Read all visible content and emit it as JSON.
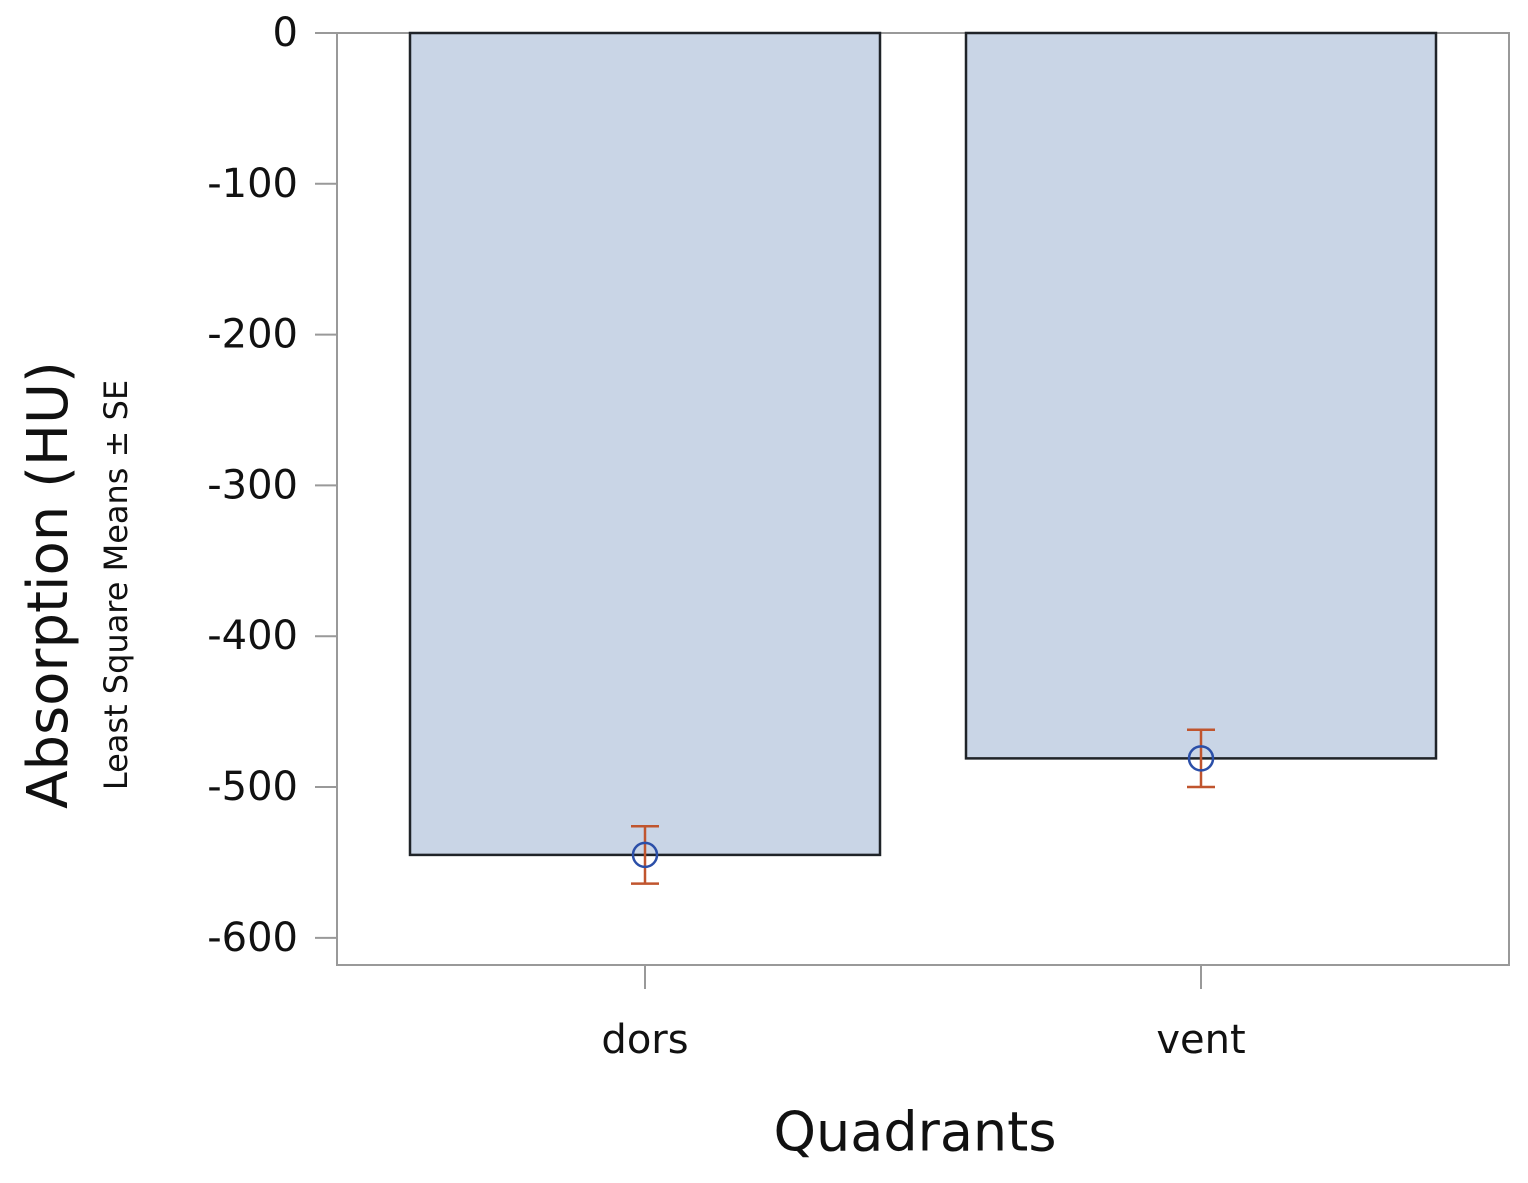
{
  "chart_data": {
    "type": "bar",
    "y_label": "Absorption (HU)",
    "y_sublabel": "Least Square Means ± SE",
    "x_label": "Quadrants",
    "categories": [
      "dors",
      "vent"
    ],
    "values": [
      -545,
      -481
    ],
    "errors": [
      19,
      19
    ],
    "color": "#c9d5e6",
    "edge_color": "#1f2328",
    "error_color": "#c0552e",
    "marker_color": "#2b4fa8",
    "ylim": [
      -618,
      0
    ],
    "yticks": [
      0,
      -100,
      -200,
      -300,
      -400,
      -500,
      -600
    ],
    "grid": false
  }
}
